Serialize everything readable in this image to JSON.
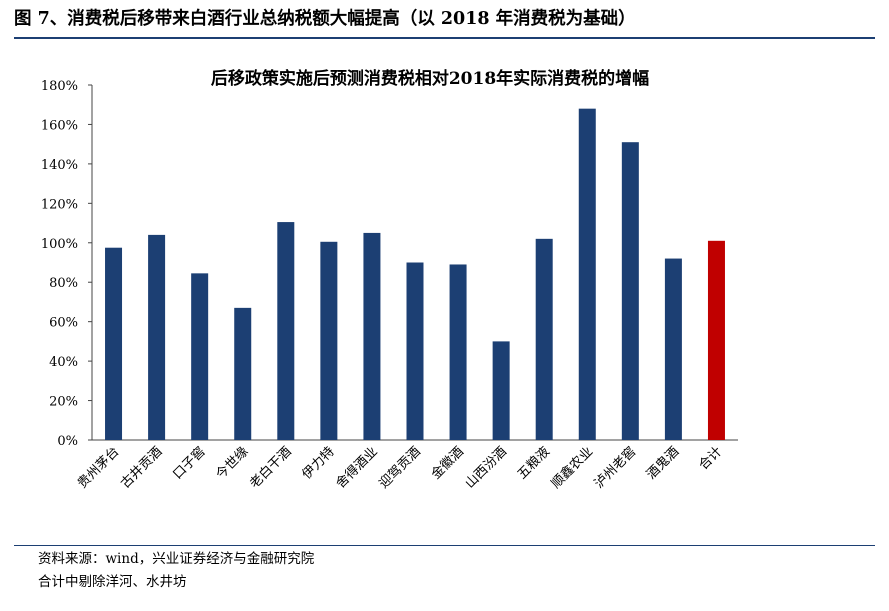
{
  "figure": {
    "title": "图 7、消费税后移带来白酒行业总纳税额大幅提高（以 2018 年消费税为基础）"
  },
  "chart_data": {
    "type": "bar",
    "title": "后移政策实施后预测消费税相对2018年实际消费税的增幅",
    "xlabel": "",
    "ylabel": "",
    "ylim": [
      0,
      180
    ],
    "y_ticks": [
      "0%",
      "20%",
      "40%",
      "60%",
      "80%",
      "100%",
      "120%",
      "140%",
      "160%",
      "180%"
    ],
    "grid": false,
    "categories": [
      "贵州茅台",
      "古井贡酒",
      "口子窖",
      "今世缘",
      "老白干酒",
      "伊力特",
      "舍得酒业",
      "迎驾贡酒",
      "金徽酒",
      "山西汾酒",
      "五粮液",
      "顺鑫农业",
      "泸州老窖",
      "酒鬼酒",
      "合计"
    ],
    "values": [
      97.5,
      104,
      84.5,
      67,
      110.5,
      100.5,
      105,
      90,
      89,
      50,
      102,
      168,
      151,
      92,
      101
    ],
    "bar_colors": [
      "#1c3f73",
      "#1c3f73",
      "#1c3f73",
      "#1c3f73",
      "#1c3f73",
      "#1c3f73",
      "#1c3f73",
      "#1c3f73",
      "#1c3f73",
      "#1c3f73",
      "#1c3f73",
      "#1c3f73",
      "#1c3f73",
      "#1c3f73",
      "#c00000"
    ]
  },
  "footer": {
    "source": "资料来源：wind，兴业证券经济与金融研究院",
    "note": "合计中剔除洋河、水井坊"
  }
}
